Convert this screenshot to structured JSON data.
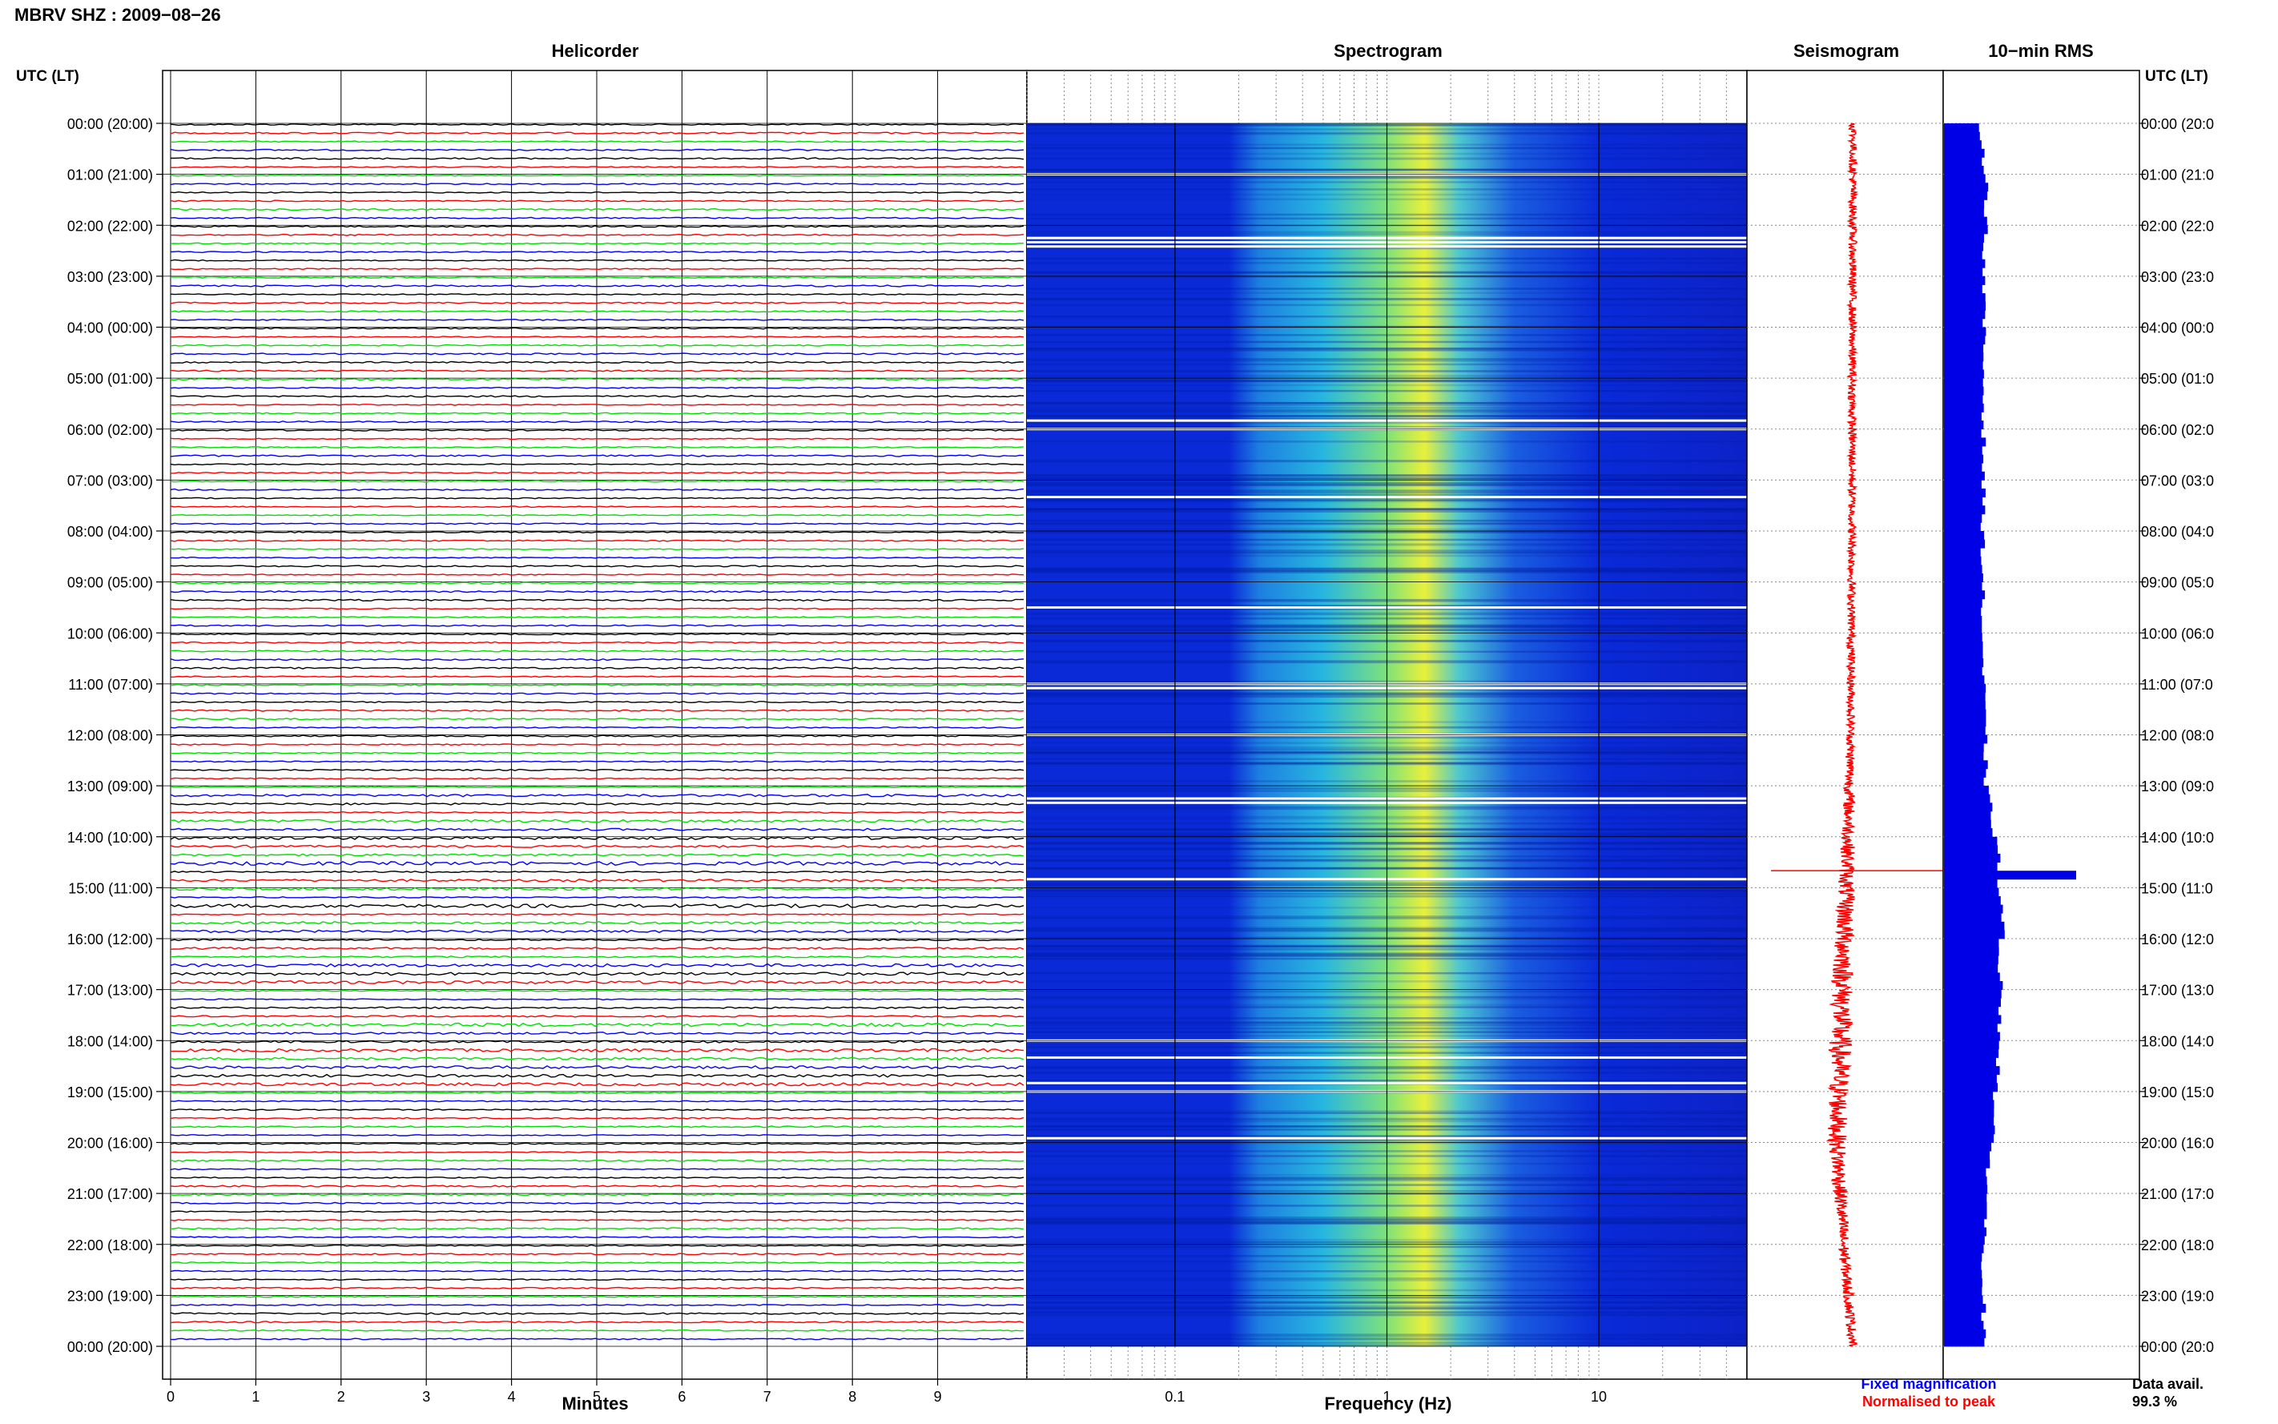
{
  "figure": {
    "title": "MBRV SHZ : 2009−08−26",
    "time_axis_label": "UTC (LT)",
    "data_availability_label": "Data avail.",
    "data_availability_value": "99.3 %"
  },
  "colors": {
    "black": "#000000",
    "red": "#ff0000",
    "green": "#00e000",
    "blue": "#0000ff",
    "spectro_low": "#0a2ad8",
    "spectro_mid": "#27b6e0",
    "spectro_high": "#e8f03a",
    "rms_bar": "#0000e6",
    "seismogram": "#ff0000"
  },
  "time_labels": [
    "00:00 (20:00)",
    "01:00 (21:00)",
    "02:00 (22:00)",
    "03:00 (23:00)",
    "04:00 (00:00)",
    "05:00 (01:00)",
    "06:00 (02:00)",
    "07:00 (03:00)",
    "08:00 (04:00)",
    "09:00 (05:00)",
    "10:00 (06:00)",
    "11:00 (07:00)",
    "12:00 (08:00)",
    "13:00 (09:00)",
    "14:00 (10:00)",
    "15:00 (11:00)",
    "16:00 (12:00)",
    "17:00 (13:00)",
    "18:00 (14:00)",
    "19:00 (15:00)",
    "20:00 (16:00)",
    "21:00 (17:00)",
    "22:00 (18:00)",
    "23:00 (19:00)",
    "00:00 (20:00)"
  ],
  "right_time_labels": [
    "00:00 (20:0",
    "01:00 (21:0",
    "02:00 (22:0",
    "03:00 (23:0",
    "04:00 (00:0",
    "05:00 (01:0",
    "06:00 (02:0",
    "07:00 (03:0",
    "08:00 (04:0",
    "09:00 (05:0",
    "10:00 (06:0",
    "11:00 (07:0",
    "12:00 (08:0",
    "13:00 (09:0",
    "14:00 (10:0",
    "15:00 (11:0",
    "16:00 (12:0",
    "17:00 (13:0",
    "18:00 (14:0",
    "19:00 (15:0",
    "20:00 (16:0",
    "21:00 (17:0",
    "22:00 (18:0",
    "23:00 (19:0",
    "00:00 (20:0"
  ],
  "chart_data": [
    {
      "type": "line",
      "panel": "helicorder",
      "title": "Helicorder",
      "xlabel": "Minutes",
      "x_ticks": [
        "0",
        "1",
        "2",
        "3",
        "4",
        "5",
        "6",
        "7",
        "8",
        "9"
      ],
      "xlim": [
        0,
        10
      ],
      "lines_per_hour": 6,
      "color_cycle": [
        "black",
        "red",
        "green",
        "blue"
      ],
      "event": {
        "utc": "14:35",
        "minute": 5.0
      },
      "legend": [
        "Fixed magnification"
      ]
    },
    {
      "type": "heatmap",
      "panel": "spectrogram",
      "title": "Spectrogram",
      "xlabel": "Frequency (Hz)",
      "x_scale": "log",
      "xlim": [
        0.02,
        50
      ],
      "x_ticks": [
        "0.1",
        "1",
        "10"
      ],
      "x_tick_values": [
        0.1,
        1,
        10
      ],
      "peak_band_hz": [
        1,
        2
      ],
      "gap_rows_utc": [
        "01:00",
        "02:15",
        "02:20",
        "02:25",
        "05:50",
        "06:00",
        "07:20",
        "09:30",
        "11:00",
        "11:05",
        "12:00",
        "13:15",
        "13:20",
        "14:50",
        "18:00",
        "18:20",
        "18:50",
        "19:00",
        "19:55"
      ]
    },
    {
      "type": "line",
      "panel": "seismogram",
      "title": "Seismogram",
      "legend": [
        "Normalised to peak"
      ],
      "spike_utc": "14:40",
      "offset_drift": [
        {
          "utc": 0,
          "offset": 0.5
        },
        {
          "utc": 4,
          "offset": 0.45
        },
        {
          "utc": 8,
          "offset": 0.43
        },
        {
          "utc": 12,
          "offset": 0.35
        },
        {
          "utc": 14,
          "offset": 0.2
        },
        {
          "utc": 16,
          "offset": -0.05
        },
        {
          "utc": 18,
          "offset": -0.3
        },
        {
          "utc": 20,
          "offset": -0.5
        },
        {
          "utc": 22,
          "offset": -0.1
        },
        {
          "utc": 24,
          "offset": 0.5
        }
      ],
      "amplitude_envelope": [
        {
          "utc": 0,
          "amp": 0.15
        },
        {
          "utc": 12,
          "amp": 0.15
        },
        {
          "utc": 14,
          "amp": 0.4
        },
        {
          "utc": 16,
          "amp": 0.7
        },
        {
          "utc": 18,
          "amp": 0.85
        },
        {
          "utc": 20,
          "amp": 0.6
        },
        {
          "utc": 22,
          "amp": 0.3
        },
        {
          "utc": 24,
          "amp": 0.2
        }
      ]
    },
    {
      "type": "bar",
      "panel": "rms",
      "title": "10−min RMS",
      "orientation": "horizontal",
      "bins_per_hour": 6,
      "hourly_profile": [
        {
          "utc": 0,
          "value": 0.25
        },
        {
          "utc": 1,
          "value": 0.33
        },
        {
          "utc": 3,
          "value": 0.3
        },
        {
          "utc": 6,
          "value": 0.3
        },
        {
          "utc": 10,
          "value": 0.29
        },
        {
          "utc": 13,
          "value": 0.32
        },
        {
          "utc": 14,
          "value": 0.4
        },
        {
          "utc": 15,
          "value": 0.42
        },
        {
          "utc": 16,
          "value": 0.44
        },
        {
          "utc": 17,
          "value": 0.42
        },
        {
          "utc": 18,
          "value": 0.43
        },
        {
          "utc": 20,
          "value": 0.35
        },
        {
          "utc": 22,
          "value": 0.3
        },
        {
          "utc": 24,
          "value": 0.3
        }
      ],
      "peak": {
        "utc": "14:40",
        "value": 1.0
      }
    }
  ]
}
